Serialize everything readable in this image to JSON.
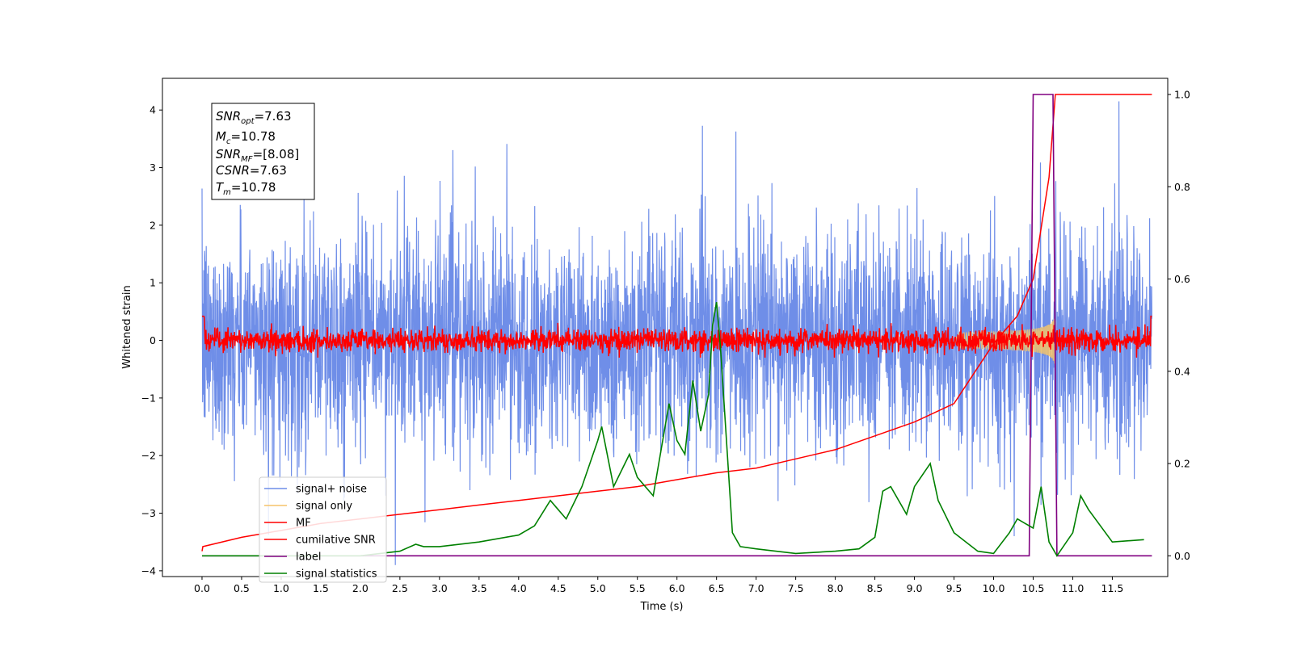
{
  "chart_data": {
    "type": "line",
    "xlabel": "Time (s)",
    "ylabel": "Whitened strain",
    "xlim": [
      -0.5,
      12.2
    ],
    "ylim": [
      -4.1,
      4.55
    ],
    "y2lim": [
      -0.045,
      1.035
    ],
    "xticks": [
      "0.0",
      "0.5",
      "1.0",
      "1.5",
      "2.0",
      "2.5",
      "3.0",
      "3.5",
      "4.0",
      "4.5",
      "5.0",
      "5.5",
      "6.0",
      "6.5",
      "7.0",
      "7.5",
      "8.0",
      "8.5",
      "9.0",
      "9.5",
      "10.0",
      "10.5",
      "11.0",
      "11.5"
    ],
    "yticks": [
      "4",
      "3",
      "2",
      "1",
      "0",
      "−1",
      "−2",
      "−3",
      "−4"
    ],
    "y2ticks": [
      "1.0",
      "0.8",
      "0.6",
      "0.4",
      "0.2",
      "0.0"
    ],
    "annotation": {
      "snr_opt": "=7.63",
      "mc": "=10.78",
      "snr_mf": "=[8.08]",
      "csnr": "=7.63",
      "tm": "=10.78"
    },
    "series": [
      {
        "name": "signal+ noise",
        "color": "#6f8ee8",
        "axis": "left",
        "description": "whitened noise, amplitude about ±2 with spikes to ±4"
      },
      {
        "name": "signal only",
        "color": "#f5c46a",
        "axis": "left",
        "description": "chirp envelope growing from 9.5 s to peak ~0.6 at 10.78 s"
      },
      {
        "name": "MF",
        "color": "#ff0000",
        "axis": "left",
        "description": "matched-filter output about ±0.3"
      },
      {
        "name": "cumilative SNR",
        "color": "#ff0000",
        "axis": "right",
        "x": [
          0.0,
          0.01,
          0.5,
          1.0,
          1.5,
          2.0,
          2.5,
          3.0,
          3.5,
          4.0,
          4.5,
          5.0,
          5.5,
          6.0,
          6.5,
          7.0,
          7.5,
          8.0,
          8.5,
          9.0,
          9.5,
          10.0,
          10.3,
          10.5,
          10.7,
          10.78,
          11.0,
          12.0
        ],
        "values": [
          0.01,
          0.02,
          0.04,
          0.055,
          0.07,
          0.08,
          0.09,
          0.1,
          0.11,
          0.12,
          0.13,
          0.14,
          0.15,
          0.165,
          0.18,
          0.19,
          0.21,
          0.23,
          0.26,
          0.29,
          0.33,
          0.46,
          0.52,
          0.6,
          0.82,
          1.0,
          1.0,
          1.0
        ]
      },
      {
        "name": "label",
        "color": "#800080",
        "axis": "right",
        "x": [
          0.0,
          10.45,
          10.5,
          10.75,
          10.8,
          11.0,
          12.0
        ],
        "values": [
          0.0,
          0.0,
          1.0,
          1.0,
          0.0,
          0.0,
          0.0
        ]
      },
      {
        "name": "signal statistics",
        "color": "#008000",
        "axis": "right",
        "x": [
          0.0,
          1.0,
          2.0,
          2.5,
          2.7,
          2.8,
          3.0,
          3.5,
          4.0,
          4.2,
          4.4,
          4.5,
          4.6,
          4.8,
          5.0,
          5.05,
          5.2,
          5.4,
          5.5,
          5.7,
          5.9,
          6.0,
          6.1,
          6.2,
          6.3,
          6.4,
          6.45,
          6.5,
          6.55,
          6.7,
          6.8,
          7.0,
          7.5,
          8.0,
          8.3,
          8.5,
          8.6,
          8.7,
          8.9,
          9.0,
          9.2,
          9.3,
          9.5,
          9.8,
          10.0,
          10.2,
          10.3,
          10.5,
          10.6,
          10.7,
          10.8,
          11.0,
          11.1,
          11.2,
          11.5,
          11.9
        ],
        "values": [
          0.0,
          0.0,
          0.0,
          0.01,
          0.025,
          0.02,
          0.02,
          0.03,
          0.045,
          0.065,
          0.12,
          0.1,
          0.08,
          0.15,
          0.25,
          0.28,
          0.15,
          0.22,
          0.17,
          0.13,
          0.33,
          0.25,
          0.22,
          0.38,
          0.27,
          0.35,
          0.5,
          0.55,
          0.45,
          0.05,
          0.02,
          0.015,
          0.005,
          0.01,
          0.015,
          0.04,
          0.14,
          0.15,
          0.09,
          0.15,
          0.2,
          0.12,
          0.05,
          0.01,
          0.005,
          0.05,
          0.08,
          0.06,
          0.15,
          0.03,
          0.0,
          0.05,
          0.13,
          0.1,
          0.03,
          0.035
        ]
      }
    ]
  }
}
